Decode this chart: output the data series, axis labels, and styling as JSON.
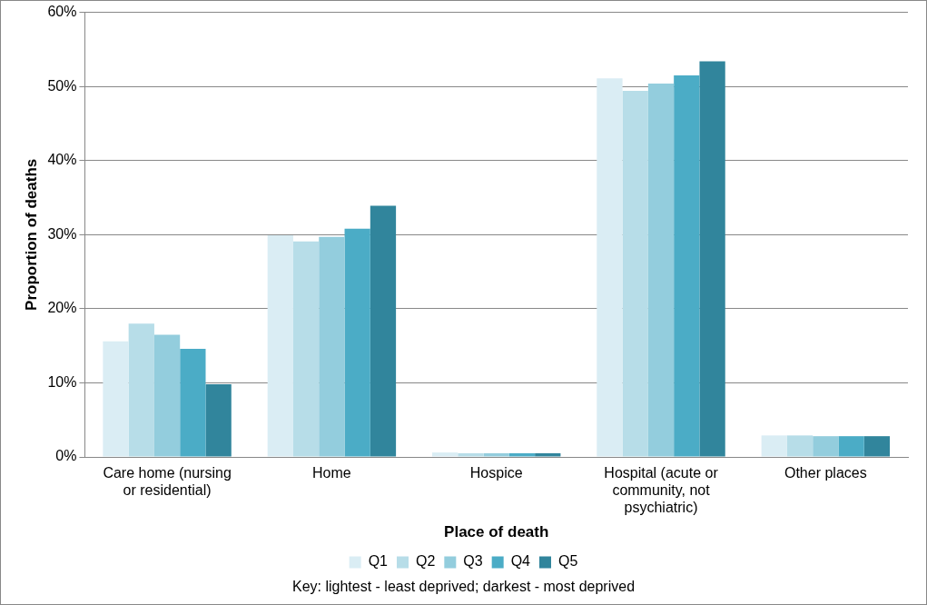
{
  "chart_data": {
    "type": "bar",
    "xlabel": "Place of death",
    "ylabel": "Proportion of deaths",
    "categories": [
      "Care home (nursing or residential)",
      "Home",
      "Hospice",
      "Hospital (acute or community, not psychiatric)",
      "Other places"
    ],
    "series": [
      {
        "name": "Q1",
        "color": "#daedf4",
        "values": [
          15.6,
          29.9,
          0.6,
          51.1,
          2.9
        ]
      },
      {
        "name": "Q2",
        "color": "#b7dde8",
        "values": [
          18.0,
          29.1,
          0.5,
          49.4,
          2.9
        ]
      },
      {
        "name": "Q3",
        "color": "#93cddd",
        "values": [
          16.5,
          29.7,
          0.5,
          50.4,
          2.8
        ]
      },
      {
        "name": "Q4",
        "color": "#4bacc6",
        "values": [
          14.6,
          30.8,
          0.5,
          51.5,
          2.8
        ]
      },
      {
        "name": "Q5",
        "color": "#31859c",
        "values": [
          9.8,
          33.9,
          0.5,
          53.4,
          2.8
        ]
      }
    ],
    "ylim": [
      0,
      60
    ],
    "yticks": [
      {
        "value": 0,
        "label": "0%"
      },
      {
        "value": 10,
        "label": "10%"
      },
      {
        "value": 20,
        "label": "20%"
      },
      {
        "value": 30,
        "label": "30%"
      },
      {
        "value": 40,
        "label": "40%"
      },
      {
        "value": 50,
        "label": "50%"
      },
      {
        "value": 60,
        "label": "60%"
      }
    ],
    "grid": "y",
    "legend": "bottom",
    "annotations": [
      "Key: lightest - least deprived; darkest - most deprived"
    ]
  }
}
